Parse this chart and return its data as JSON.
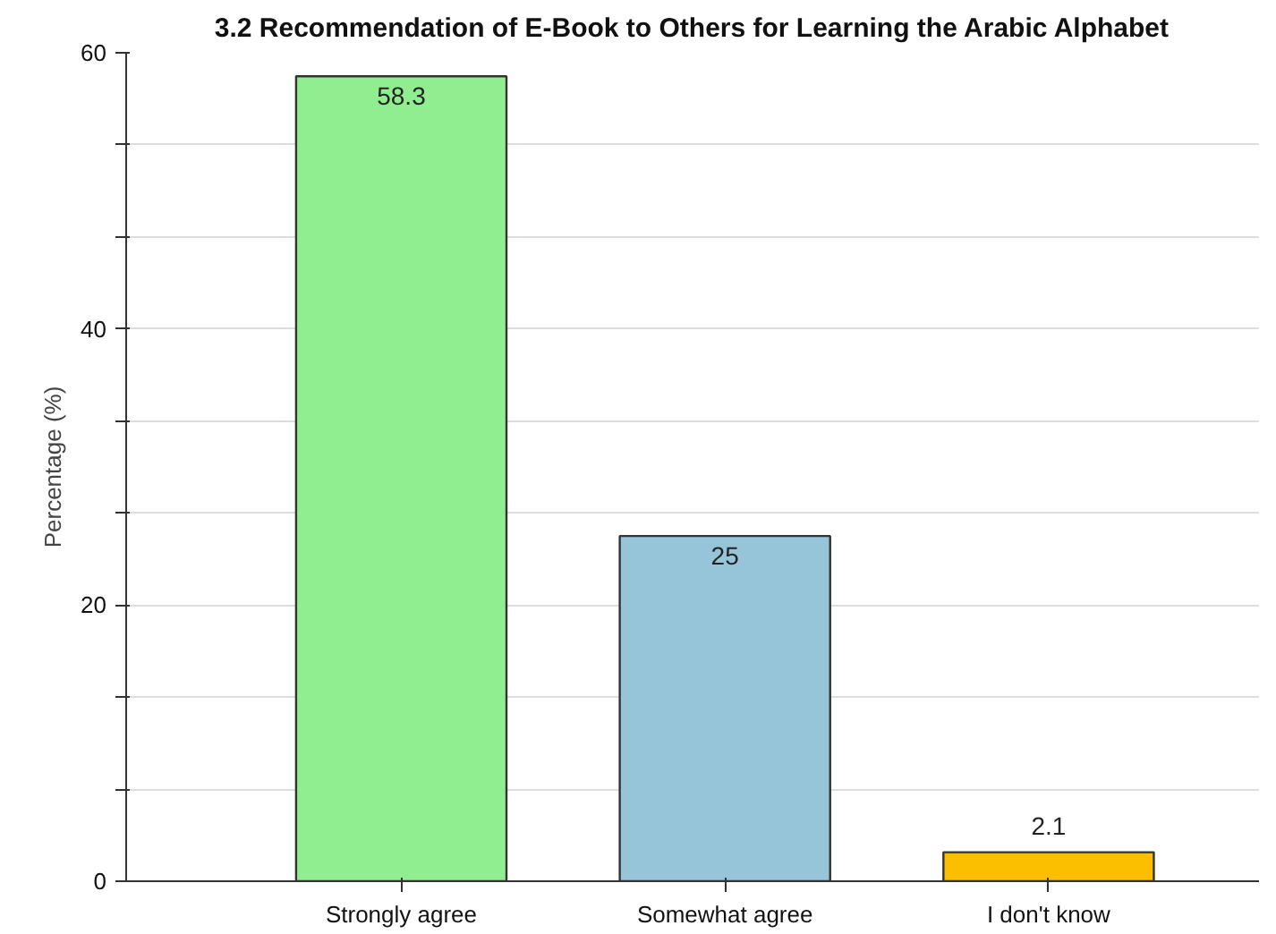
{
  "chart_data": {
    "type": "bar",
    "title": "3.2 Recommendation of E-Book to Others for Learning the Arabic Alphabet",
    "ylabel": "Percentage (%)",
    "categories": [
      "Strongly agree",
      "Somewhat agree",
      "I don't know"
    ],
    "values": [
      58.3,
      25,
      2.1
    ],
    "colors": [
      "#90ee90",
      "#96c5da",
      "#fcbf00"
    ],
    "data_labels": true,
    "ylim": [
      0,
      60
    ],
    "yticks": [
      0,
      {
        "value": 6.67,
        "label": null
      },
      {
        "value": 13.33,
        "label": null
      },
      20,
      {
        "value": 26.67,
        "label": null
      },
      {
        "value": 33.33,
        "label": null
      },
      40,
      {
        "value": 46.67,
        "label": null
      },
      {
        "value": 53.33,
        "label": null
      },
      60
    ],
    "grid": "y"
  }
}
